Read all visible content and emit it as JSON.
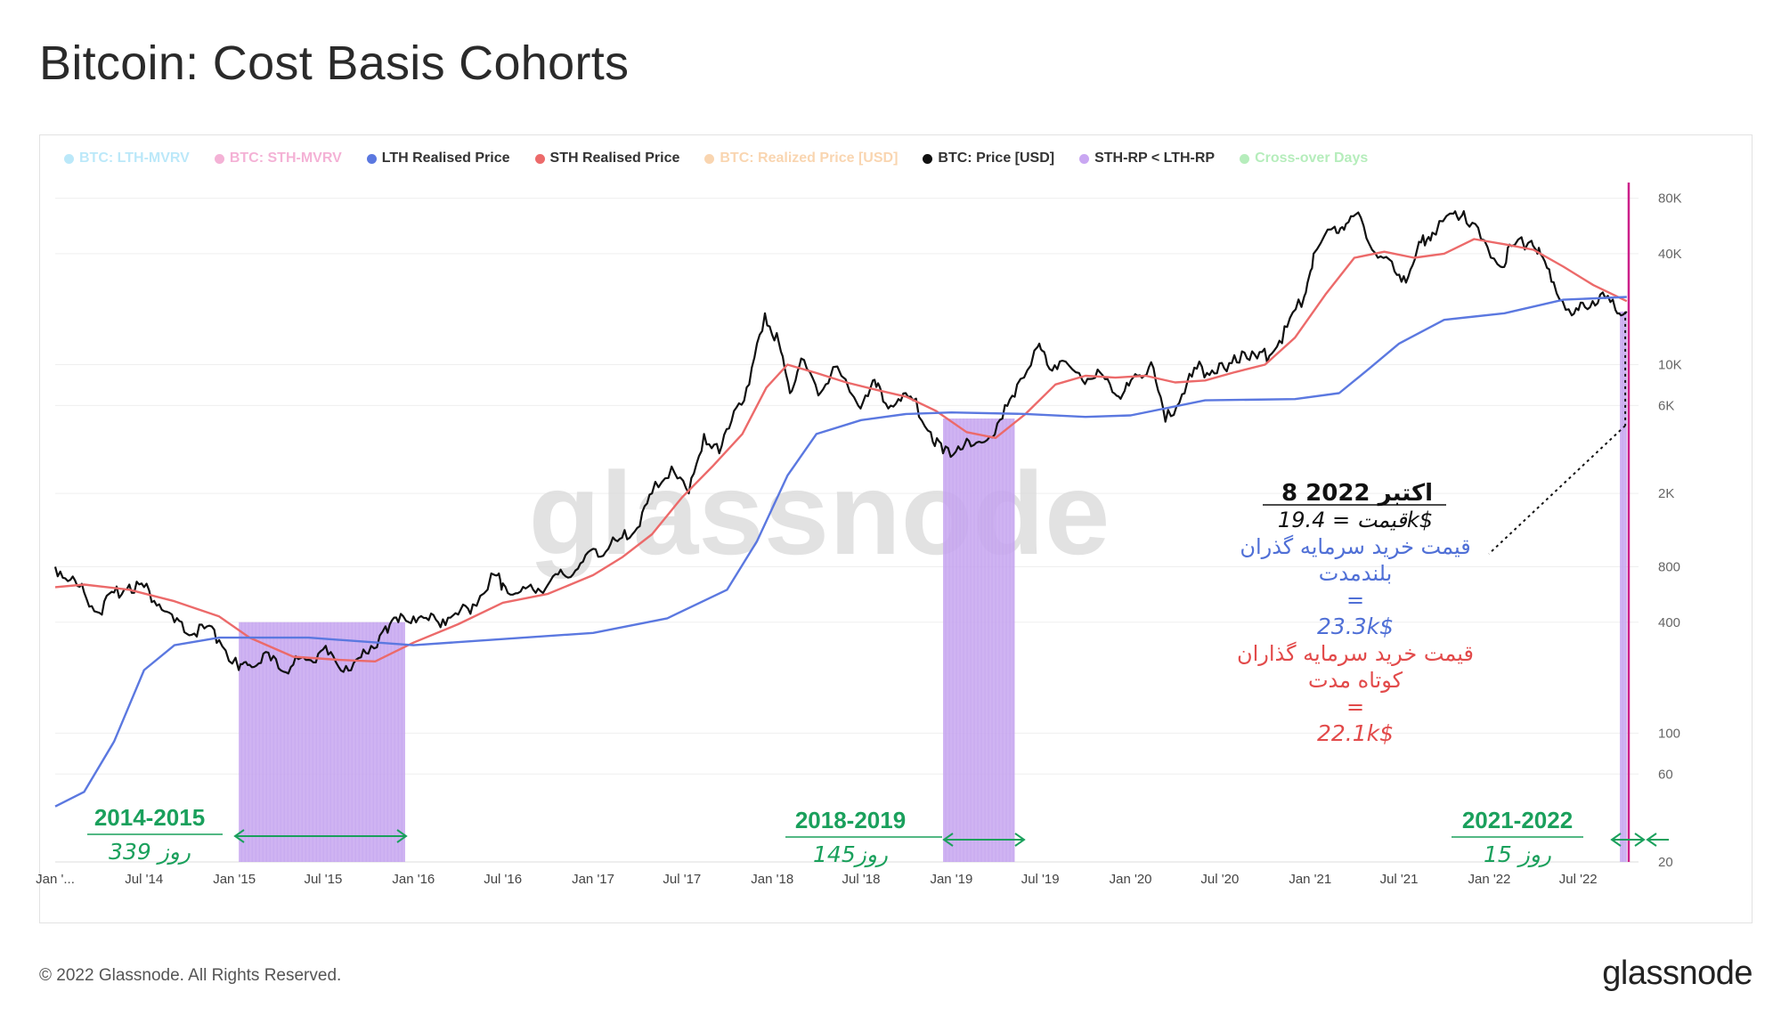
{
  "title": "Bitcoin: Cost Basis Cohorts",
  "footer": {
    "copyright": "© 2022 Glassnode. All Rights Reserved.",
    "logo": "glassnode"
  },
  "watermark": "glassnode",
  "legend": [
    {
      "label": "BTC: LTH-MVRV",
      "color": "#3ec0f0",
      "active": false
    },
    {
      "label": "BTC: STH-MVRV",
      "color": "#e0228a",
      "active": false
    },
    {
      "label": "LTH Realised Price",
      "color": "#5b78e0",
      "active": true
    },
    {
      "label": "STH Realised Price",
      "color": "#ec6a6a",
      "active": true
    },
    {
      "label": "BTC: Realized Price [USD]",
      "color": "#f08a20",
      "active": false
    },
    {
      "label": "BTC: Price [USD]",
      "color": "#111111",
      "active": true
    },
    {
      "label": "STH-RP < LTH-RP",
      "color": "#c9a7f2",
      "active": true
    },
    {
      "label": "Cross-over Days",
      "color": "#2ecc40",
      "active": false
    }
  ],
  "chart_data": {
    "type": "line",
    "title": "Bitcoin: Cost Basis Cohorts",
    "yscale": "log",
    "ylim": [
      20,
      90000
    ],
    "xlim": [
      "2014-01-01",
      "2022-11-01"
    ],
    "y_ticks": [
      "80K",
      "40K",
      "10K",
      "6K",
      "2K",
      "800",
      "400",
      "100",
      "60",
      "20"
    ],
    "y_tick_values": [
      80000,
      40000,
      10000,
      6000,
      2000,
      800,
      400,
      100,
      60,
      20
    ],
    "x_ticks": [
      "Jan '...",
      "Jul '14",
      "Jan '15",
      "Jul '15",
      "Jan '16",
      "Jul '16",
      "Jan '17",
      "Jul '17",
      "Jan '18",
      "Jul '18",
      "Jan '19",
      "Jul '19",
      "Jan '20",
      "Jul '20",
      "Jan '21",
      "Jul '21",
      "Jan '22",
      "Jul '22"
    ],
    "x_tick_dates": [
      "2014-01-01",
      "2014-07-01",
      "2015-01-01",
      "2015-07-01",
      "2016-01-01",
      "2016-07-01",
      "2017-01-01",
      "2017-07-01",
      "2018-01-01",
      "2018-07-01",
      "2019-01-01",
      "2019-07-01",
      "2020-01-01",
      "2020-07-01",
      "2021-01-01",
      "2021-07-01",
      "2022-01-01",
      "2022-07-01"
    ],
    "series": [
      {
        "name": "BTC: Price [USD]",
        "color": "#111111",
        "points": [
          [
            "2014-01-01",
            800
          ],
          [
            "2014-02-01",
            680
          ],
          [
            "2014-03-01",
            580
          ],
          [
            "2014-04-01",
            450
          ],
          [
            "2014-05-01",
            580
          ],
          [
            "2014-06-01",
            640
          ],
          [
            "2014-07-01",
            620
          ],
          [
            "2014-08-01",
            500
          ],
          [
            "2014-09-01",
            400
          ],
          [
            "2014-10-01",
            340
          ],
          [
            "2014-11-01",
            370
          ],
          [
            "2014-12-01",
            320
          ],
          [
            "2015-01-10",
            220
          ],
          [
            "2015-02-01",
            235
          ],
          [
            "2015-03-01",
            270
          ],
          [
            "2015-04-01",
            225
          ],
          [
            "2015-05-01",
            235
          ],
          [
            "2015-06-01",
            250
          ],
          [
            "2015-07-01",
            285
          ],
          [
            "2015-08-01",
            230
          ],
          [
            "2015-09-01",
            240
          ],
          [
            "2015-10-01",
            270
          ],
          [
            "2015-11-05",
            380
          ],
          [
            "2015-12-01",
            400
          ],
          [
            "2016-01-01",
            430
          ],
          [
            "2016-02-01",
            410
          ],
          [
            "2016-03-01",
            415
          ],
          [
            "2016-04-01",
            440
          ],
          [
            "2016-05-01",
            500
          ],
          [
            "2016-06-15",
            720
          ],
          [
            "2016-07-01",
            650
          ],
          [
            "2016-08-01",
            575
          ],
          [
            "2016-09-01",
            600
          ],
          [
            "2016-10-01",
            640
          ],
          [
            "2016-11-01",
            730
          ],
          [
            "2016-12-01",
            780
          ],
          [
            "2017-01-01",
            1000
          ],
          [
            "2017-02-01",
            1000
          ],
          [
            "2017-03-01",
            1150
          ],
          [
            "2017-04-01",
            1300
          ],
          [
            "2017-05-01",
            2000
          ],
          [
            "2017-06-10",
            2800
          ],
          [
            "2017-07-15",
            2000
          ],
          [
            "2017-08-15",
            4200
          ],
          [
            "2017-09-15",
            3300
          ],
          [
            "2017-10-15",
            5600
          ],
          [
            "2017-11-15",
            7800
          ],
          [
            "2017-12-17",
            19000
          ],
          [
            "2018-01-15",
            13000
          ],
          [
            "2018-02-06",
            7000
          ],
          [
            "2018-03-01",
            10800
          ],
          [
            "2018-04-05",
            6800
          ],
          [
            "2018-05-05",
            9700
          ],
          [
            "2018-06-25",
            6000
          ],
          [
            "2018-07-25",
            8200
          ],
          [
            "2018-08-15",
            6300
          ],
          [
            "2018-09-15",
            6500
          ],
          [
            "2018-10-15",
            6400
          ],
          [
            "2018-11-20",
            4300
          ],
          [
            "2018-12-15",
            3300
          ],
          [
            "2019-01-15",
            3600
          ],
          [
            "2019-02-10",
            3600
          ],
          [
            "2019-03-15",
            3900
          ],
          [
            "2019-04-15",
            5100
          ],
          [
            "2019-05-15",
            7800
          ],
          [
            "2019-06-26",
            12500
          ],
          [
            "2019-07-15",
            10000
          ],
          [
            "2019-08-15",
            10500
          ],
          [
            "2019-09-25",
            8200
          ],
          [
            "2019-10-26",
            9400
          ],
          [
            "2019-11-25",
            7100
          ],
          [
            "2019-12-20",
            7200
          ],
          [
            "2020-01-15",
            8700
          ],
          [
            "2020-02-12",
            10300
          ],
          [
            "2020-03-12",
            4900
          ],
          [
            "2020-04-15",
            6900
          ],
          [
            "2020-05-15",
            9500
          ],
          [
            "2020-06-15",
            9300
          ],
          [
            "2020-07-15",
            9200
          ],
          [
            "2020-08-15",
            11800
          ],
          [
            "2020-09-15",
            10800
          ],
          [
            "2020-10-15",
            11500
          ],
          [
            "2020-11-15",
            16000
          ],
          [
            "2020-12-20",
            23500
          ],
          [
            "2021-01-08",
            40000
          ],
          [
            "2021-02-20",
            56000
          ],
          [
            "2021-03-15",
            58000
          ],
          [
            "2021-04-14",
            63000
          ],
          [
            "2021-05-19",
            38000
          ],
          [
            "2021-06-22",
            32000
          ],
          [
            "2021-07-20",
            30000
          ],
          [
            "2021-08-15",
            46000
          ],
          [
            "2021-09-07",
            52000
          ],
          [
            "2021-10-20",
            66000
          ],
          [
            "2021-11-10",
            68000
          ],
          [
            "2021-12-15",
            48000
          ],
          [
            "2022-01-24",
            34000
          ],
          [
            "2022-02-15",
            44000
          ],
          [
            "2022-03-28",
            47000
          ],
          [
            "2022-04-15",
            40000
          ],
          [
            "2022-05-12",
            28000
          ],
          [
            "2022-06-18",
            18500
          ],
          [
            "2022-07-15",
            20500
          ],
          [
            "2022-08-15",
            24000
          ],
          [
            "2022-09-15",
            19800
          ],
          [
            "2022-10-08",
            19400
          ]
        ]
      },
      {
        "name": "STH Realised Price",
        "color": "#ec6a6a",
        "points": [
          [
            "2014-01-01",
            620
          ],
          [
            "2014-03-01",
            640
          ],
          [
            "2014-06-01",
            600
          ],
          [
            "2014-09-01",
            520
          ],
          [
            "2014-12-01",
            430
          ],
          [
            "2015-02-01",
            330
          ],
          [
            "2015-05-01",
            260
          ],
          [
            "2015-08-01",
            250
          ],
          [
            "2015-10-15",
            245
          ],
          [
            "2016-01-01",
            310
          ],
          [
            "2016-04-01",
            390
          ],
          [
            "2016-07-01",
            510
          ],
          [
            "2016-10-01",
            570
          ],
          [
            "2017-01-01",
            720
          ],
          [
            "2017-03-01",
            900
          ],
          [
            "2017-05-01",
            1200
          ],
          [
            "2017-07-01",
            1900
          ],
          [
            "2017-09-01",
            2800
          ],
          [
            "2017-11-01",
            4200
          ],
          [
            "2017-12-20",
            7500
          ],
          [
            "2018-02-01",
            10000
          ],
          [
            "2018-04-01",
            9000
          ],
          [
            "2018-06-01",
            8000
          ],
          [
            "2018-08-01",
            7300
          ],
          [
            "2018-10-01",
            6700
          ],
          [
            "2018-12-01",
            5600
          ],
          [
            "2019-02-01",
            4300
          ],
          [
            "2019-04-01",
            4000
          ],
          [
            "2019-06-01",
            5400
          ],
          [
            "2019-08-01",
            7800
          ],
          [
            "2019-10-01",
            8700
          ],
          [
            "2019-12-01",
            8500
          ],
          [
            "2020-02-01",
            8700
          ],
          [
            "2020-04-01",
            8000
          ],
          [
            "2020-06-01",
            8200
          ],
          [
            "2020-08-01",
            9100
          ],
          [
            "2020-10-01",
            10000
          ],
          [
            "2020-12-01",
            14000
          ],
          [
            "2021-02-01",
            24000
          ],
          [
            "2021-04-01",
            38000
          ],
          [
            "2021-06-01",
            41000
          ],
          [
            "2021-08-01",
            38000
          ],
          [
            "2021-10-01",
            40000
          ],
          [
            "2021-12-01",
            48000
          ],
          [
            "2022-02-01",
            45000
          ],
          [
            "2022-04-01",
            42000
          ],
          [
            "2022-06-01",
            34000
          ],
          [
            "2022-08-01",
            27000
          ],
          [
            "2022-10-08",
            22100
          ]
        ]
      },
      {
        "name": "LTH Realised Price",
        "color": "#5b78e0",
        "points": [
          [
            "2014-01-01",
            40
          ],
          [
            "2014-03-01",
            48
          ],
          [
            "2014-05-01",
            90
          ],
          [
            "2014-07-01",
            220
          ],
          [
            "2014-09-01",
            300
          ],
          [
            "2014-12-01",
            330
          ],
          [
            "2015-06-01",
            330
          ],
          [
            "2016-01-01",
            300
          ],
          [
            "2016-06-01",
            320
          ],
          [
            "2017-01-01",
            350
          ],
          [
            "2017-06-01",
            420
          ],
          [
            "2017-10-01",
            600
          ],
          [
            "2017-12-01",
            1100
          ],
          [
            "2018-02-01",
            2500
          ],
          [
            "2018-04-01",
            4200
          ],
          [
            "2018-07-01",
            5000
          ],
          [
            "2018-10-01",
            5400
          ],
          [
            "2019-01-01",
            5500
          ],
          [
            "2019-06-01",
            5400
          ],
          [
            "2019-10-01",
            5200
          ],
          [
            "2020-01-01",
            5300
          ],
          [
            "2020-06-01",
            6400
          ],
          [
            "2020-12-01",
            6500
          ],
          [
            "2021-03-01",
            7000
          ],
          [
            "2021-05-01",
            9500
          ],
          [
            "2021-07-01",
            13000
          ],
          [
            "2021-10-01",
            17500
          ],
          [
            "2022-02-01",
            19000
          ],
          [
            "2022-06-01",
            22500
          ],
          [
            "2022-10-08",
            23300
          ]
        ]
      }
    ],
    "shaded_regions": [
      {
        "label": "STH-RP < LTH-RP",
        "start": "2015-01-10",
        "end": "2015-12-15"
      },
      {
        "label": "STH-RP < LTH-RP",
        "start": "2018-12-15",
        "end": "2019-05-10"
      },
      {
        "label": "STH-RP < LTH-RP",
        "start": "2022-09-24",
        "end": "2022-10-08"
      }
    ],
    "marker_line": {
      "date": "2022-10-12",
      "color": "#cc1f8a"
    },
    "annotations": {
      "periods": [
        {
          "years": "2014-2015",
          "days": "339 روز"
        },
        {
          "years": "2018-2019",
          "days": "145روز"
        },
        {
          "years": "2021-2022",
          "days": "15 روز"
        }
      ],
      "callout": {
        "date_label": "8 اکتبر 2022",
        "price_line": "قیمت = 19.4k$",
        "lth_label_1": "قیمت خرید سرمایه گذران",
        "lth_label_2": "بلندمدت",
        "lth_eq": "=",
        "lth_value": "23.3k$",
        "sth_label_1": "قیمت خرید سرمایه گذاران",
        "sth_label_2": "کوتاه مدت",
        "sth_eq": "=",
        "sth_value": "22.1k$"
      }
    }
  }
}
